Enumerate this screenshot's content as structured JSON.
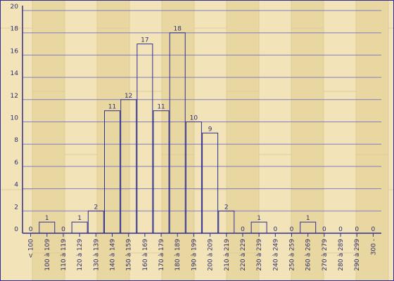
{
  "colors": {
    "background": "#efe0b0",
    "plank_light": "#f4e7bf",
    "plank_dark": "#e3cf97",
    "bar_stroke": "#2f2f8f",
    "axis": "#2f2f8f",
    "grid": "#7f7fc0",
    "text": "#2f2f6f"
  },
  "chart_data": {
    "type": "bar",
    "title": "",
    "xlabel": "",
    "ylabel": "",
    "ylim": [
      0,
      20
    ],
    "y_ticks": [
      0,
      2,
      4,
      6,
      8,
      10,
      12,
      14,
      16,
      18,
      20
    ],
    "grid": true,
    "categories": [
      "< 100",
      "100 à 109",
      "110 à 119",
      "120 à 129",
      "130 à 139",
      "140 à 149",
      "150 à 159",
      "160 à 169",
      "170 à 179",
      "180 à 189",
      "190 à 199",
      "200 à 209",
      "210 à 219",
      "220 à 229",
      "230 à 239",
      "240 à 249",
      "250 à 259",
      "260 à 269",
      "270 à 279",
      "280 à 289",
      "290 à 299",
      "300 -"
    ],
    "values": [
      0,
      1,
      0,
      1,
      2,
      11,
      12,
      17,
      11,
      18,
      10,
      9,
      2,
      0,
      1,
      0,
      0,
      1,
      0,
      0,
      0,
      0
    ],
    "data_labels": [
      "0",
      "1",
      "0",
      "1",
      "2",
      "11",
      "12",
      "17",
      "11",
      "18",
      "10",
      "9",
      "2",
      "0",
      "1",
      "0",
      "0",
      "1",
      "0",
      "0",
      "0",
      "0"
    ]
  }
}
